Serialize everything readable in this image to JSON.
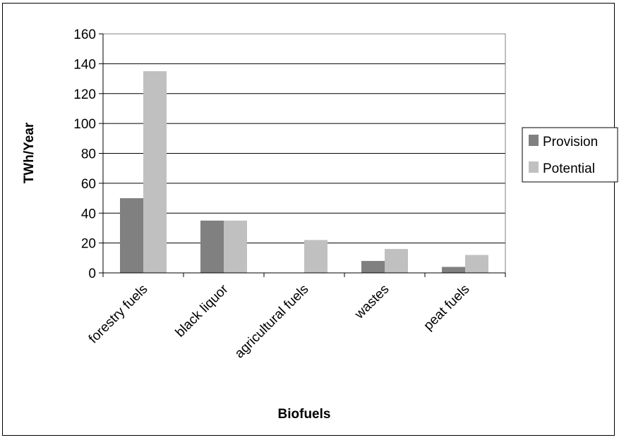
{
  "chart_data": {
    "type": "bar",
    "categories": [
      "forestry fuels",
      "black liquor",
      "agricultural fuels",
      "wastes",
      "peat fuels"
    ],
    "series": [
      {
        "name": "Provision",
        "color": "#808080",
        "values": [
          50,
          35,
          0,
          8,
          4
        ]
      },
      {
        "name": "Potential",
        "color": "#c0c0c0",
        "values": [
          135,
          35,
          22,
          16,
          12
        ]
      }
    ],
    "xlabel": "Biofuels",
    "ylabel": "TWh/Year",
    "ylim": [
      0,
      160
    ],
    "yticks": [
      "0",
      "20",
      "40",
      "60",
      "80",
      "100",
      "120",
      "140",
      "160"
    ],
    "grid": true,
    "legend_position": "right"
  }
}
